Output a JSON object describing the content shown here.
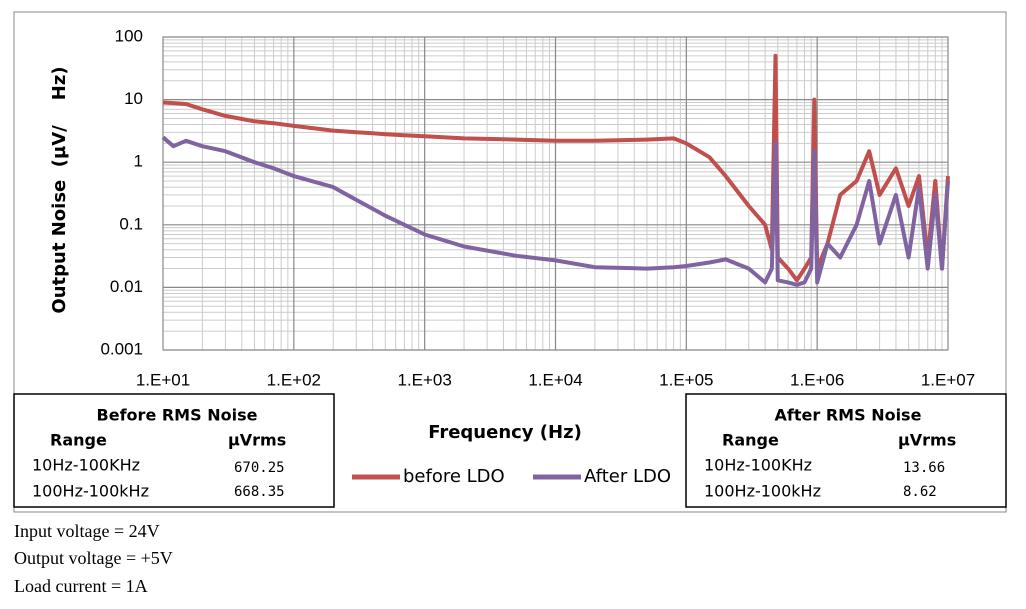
{
  "chart_data": {
    "type": "line",
    "x_label": "Frequency (Hz)",
    "y_label": "Output Noise  (µV/    Hz)",
    "x": [
      10,
      12,
      15,
      20,
      30,
      50,
      70,
      100,
      200,
      300,
      400,
      500,
      700,
      1000,
      2000,
      5000,
      10000,
      20000,
      50000,
      80000,
      100000,
      150000,
      200000,
      300000,
      400000,
      450000,
      480000,
      500000,
      600000,
      700000,
      800000,
      900000,
      950000,
      1000000,
      1200000,
      1500000,
      2000000,
      2500000,
      3000000,
      4000000,
      5000000,
      6000000,
      7000000,
      8000000,
      9000000,
      10000000
    ],
    "series": [
      {
        "name": "before LDO",
        "color": "#c0504d",
        "values": [
          9,
          8.8,
          8.5,
          7,
          5.5,
          4.5,
          4.2,
          3.8,
          3.2,
          3,
          2.9,
          2.8,
          2.7,
          2.6,
          2.4,
          2.3,
          2.2,
          2.2,
          2.3,
          2.4,
          2,
          1.2,
          0.6,
          0.2,
          0.1,
          0.04,
          50,
          0.03,
          0.02,
          0.013,
          0.02,
          0.03,
          10,
          0.02,
          0.05,
          0.3,
          0.5,
          1.5,
          0.3,
          0.8,
          0.2,
          0.6,
          0.03,
          0.5,
          0.02,
          0.6
        ]
      },
      {
        "name": "After LDO",
        "color": "#8064a2",
        "values": [
          2.5,
          1.8,
          2.2,
          1.8,
          1.5,
          1,
          0.8,
          0.6,
          0.4,
          0.25,
          0.18,
          0.14,
          0.1,
          0.07,
          0.045,
          0.032,
          0.027,
          0.021,
          0.02,
          0.021,
          0.022,
          0.025,
          0.028,
          0.02,
          0.012,
          0.02,
          2,
          0.013,
          0.012,
          0.011,
          0.012,
          0.02,
          1.5,
          0.012,
          0.05,
          0.03,
          0.1,
          0.5,
          0.05,
          0.3,
          0.03,
          0.4,
          0.02,
          0.3,
          0.02,
          0.5
        ]
      }
    ],
    "xlog": true,
    "ylog": true,
    "grid": true,
    "legend": "bottom",
    "xlim": [
      10,
      10000000
    ],
    "xticks": [
      {
        "value": 10,
        "label": "1.E+01"
      },
      {
        "value": 100,
        "label": "1.E+02"
      },
      {
        "value": 1000,
        "label": "1.E+03"
      },
      {
        "value": 10000,
        "label": "1.E+04"
      },
      {
        "value": 100000,
        "label": "1.E+05"
      },
      {
        "value": 1000000,
        "label": "1.E+06"
      },
      {
        "value": 10000000,
        "label": "1.E+07"
      }
    ],
    "ylim": [
      0.001,
      100
    ],
    "yticks": [
      0.001,
      0.01,
      0.1,
      1,
      10,
      100
    ]
  },
  "before_table": {
    "title": "Before RMS Noise",
    "headers": [
      "Range",
      "µVrms"
    ],
    "rows": [
      [
        "10Hz-100KHz",
        "670.25"
      ],
      [
        "100Hz-100kHz",
        "668.35"
      ]
    ]
  },
  "after_table": {
    "title": "After RMS Noise",
    "headers": [
      "Range",
      "µVrms"
    ],
    "rows": [
      [
        "10Hz-100KHz",
        "13.66"
      ],
      [
        "100Hz-100kHz",
        "8.62"
      ]
    ]
  },
  "notes": [
    "Input voltage = 24V",
    "Output voltage = +5V",
    "Load current = 1A"
  ]
}
